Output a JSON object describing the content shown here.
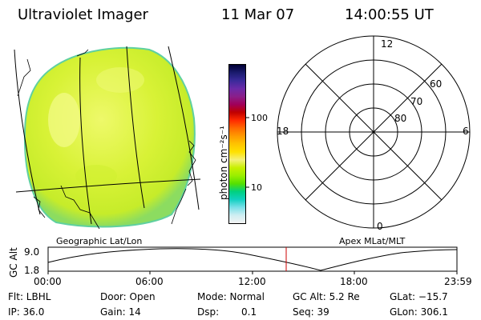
{
  "header": {
    "title": "Ultraviolet Imager",
    "date": "11 Mar 07",
    "time": "14:00:55 UT"
  },
  "colorbar": {
    "unit_label": "photon cm⁻²s⁻¹",
    "tick_labels": [
      "100",
      "10"
    ],
    "colors": [
      "#000033",
      "#1b1b6e",
      "#3a2a9a",
      "#6b2aa8",
      "#8a1f8a",
      "#a0005a",
      "#c00000",
      "#ff2a00",
      "#ff6a00",
      "#ff9a00",
      "#ffc400",
      "#ffe100",
      "#f5f07a",
      "#c8f000",
      "#9aee00",
      "#55e000",
      "#00d080",
      "#10d0c0",
      "#7ae0e8",
      "#cfeef2",
      "#f3f3f3"
    ]
  },
  "map_left": {
    "disc_colors": {
      "base": "#d6f232",
      "light": "#f3fb8a",
      "rim": "#5fd0a0"
    }
  },
  "polar_plot": {
    "mlt_labels": {
      "top": "12",
      "right": "6",
      "bottom": "0",
      "left": "18"
    },
    "lat_labels": [
      "60",
      "70",
      "80"
    ]
  },
  "timeline": {
    "left_label": "Geographic Lat/Lon",
    "right_label": "Apex MLat/MLT",
    "axis_label": "GC Alt",
    "y_ticks": [
      "9.0",
      "1.8"
    ],
    "x_ticks": [
      "00:00",
      "06:00",
      "12:00",
      "18:00",
      "23:59"
    ],
    "marker_color": "#cc0000"
  },
  "info": {
    "row1": {
      "flt": "Flt: LBHL",
      "door": "Door: Open",
      "mode": "Mode: Normal",
      "gcalt": "GC Alt: 5.2 Re",
      "glat": "GLat: −15.7"
    },
    "row2": {
      "ip": "IP: 36.0",
      "gain": "Gain: 14",
      "dsp_label": "Dsp:",
      "dsp_value": "0.1",
      "seq": "Seq: 39",
      "glon": "GLon: 306.1"
    }
  }
}
